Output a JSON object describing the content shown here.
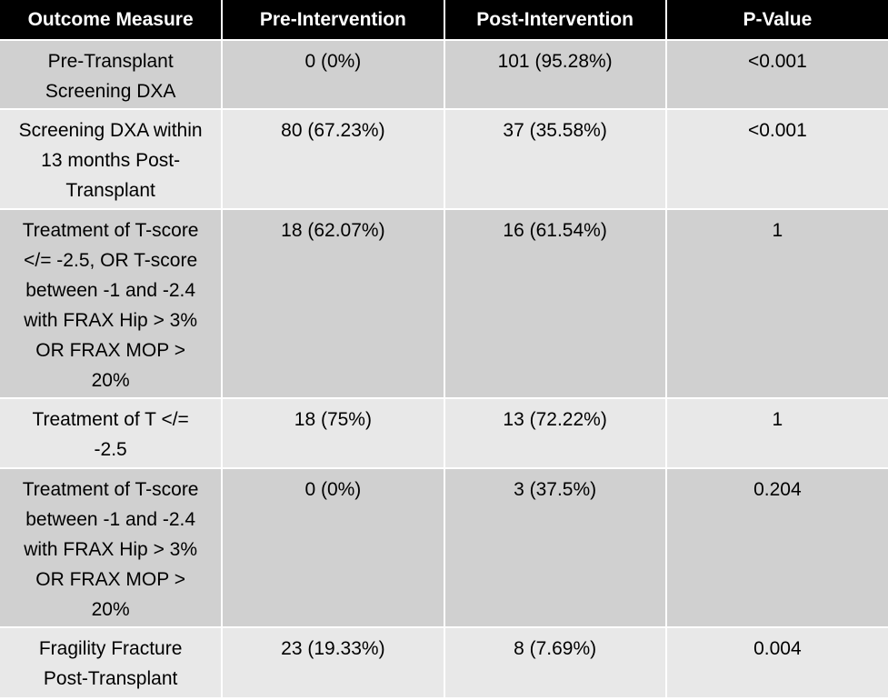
{
  "table": {
    "header": [
      "Outcome Measure",
      "Pre-Intervention",
      "Post-Intervention",
      "P-Value"
    ],
    "rows": [
      [
        "Pre-Transplant Screening DXA",
        "0 (0%)",
        "101 (95.28%)",
        "<0.001"
      ],
      [
        "Screening DXA within 13 months Post-Transplant",
        "80 (67.23%)",
        "37 (35.58%)",
        "<0.001"
      ],
      [
        "Treatment of T-score </= -2.5, OR T-score between -1 and -2.4 with FRAX Hip > 3% OR FRAX MOP > 20%",
        "18 (62.07%)",
        "16 (61.54%)",
        "1"
      ],
      [
        "Treatment of T </= -2.5",
        "18 (75%)",
        "13 (72.22%)",
        "1"
      ],
      [
        "Treatment of T-score between -1 and -2.4 with FRAX Hip > 3% OR FRAX MOP > 20%",
        "0 (0%)",
        "3 (37.5%)",
        "0.204"
      ],
      [
        "Fragility Fracture Post-Transplant",
        "23 (19.33%)",
        "8 (7.69%)",
        "0.004"
      ]
    ]
  }
}
